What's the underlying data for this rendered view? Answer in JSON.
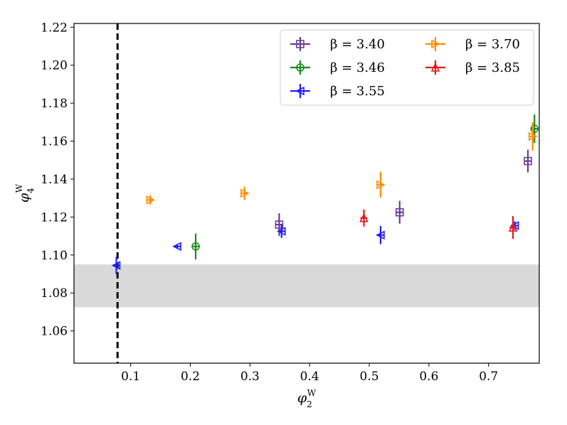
{
  "chart_data": {
    "type": "scatter",
    "title": "",
    "xlabel": {
      "base": "φ",
      "sub": "2",
      "sup": "W"
    },
    "ylabel": {
      "base": "φ",
      "sub": "4",
      "sup": "W"
    },
    "xlim": [
      0.005,
      0.785
    ],
    "ylim": [
      1.043,
      1.222
    ],
    "xticks": [
      0.1,
      0.2,
      0.3,
      0.4,
      0.5,
      0.6,
      0.7
    ],
    "xtick_labels": [
      "0.1",
      "0.2",
      "0.3",
      "0.4",
      "0.5",
      "0.6",
      "0.7"
    ],
    "yticks": [
      1.06,
      1.08,
      1.1,
      1.12,
      1.14,
      1.16,
      1.18,
      1.2,
      1.22
    ],
    "ytick_labels": [
      "1.06",
      "1.08",
      "1.10",
      "1.12",
      "1.14",
      "1.16",
      "1.18",
      "1.20",
      "1.22"
    ],
    "grid": false,
    "legend_position": "top-right",
    "vertical_line": {
      "x": 0.078,
      "style": "dashed",
      "color": "#000000"
    },
    "band": {
      "y_low": 1.0725,
      "y_high": 1.095,
      "color": "#d9d9d9"
    },
    "series": [
      {
        "name": "β = 3.40",
        "color": "#6a3d9a",
        "marker": "square",
        "points": [
          {
            "x": 0.349,
            "y": 1.116,
            "err": 0.006
          },
          {
            "x": 0.551,
            "y": 1.1225,
            "err": 0.006
          },
          {
            "x": 0.766,
            "y": 1.1495,
            "err": 0.006
          }
        ]
      },
      {
        "name": "β = 3.46",
        "color": "#1a8a1a",
        "marker": "circle",
        "points": [
          {
            "x": 0.209,
            "y": 1.1045,
            "err": 0.0068
          },
          {
            "x": 0.777,
            "y": 1.1665,
            "err": 0.0075
          }
        ]
      },
      {
        "name": "β = 3.55",
        "color": "#1f1fff",
        "marker": "triangle-left",
        "points": [
          {
            "x": 0.076,
            "y": 1.0945,
            "err": 0.0045
          },
          {
            "x": 0.178,
            "y": 1.1045,
            "err": 0.0012
          },
          {
            "x": 0.353,
            "y": 1.1125,
            "err": 0.0035
          },
          {
            "x": 0.519,
            "y": 1.1105,
            "err": 0.0048
          },
          {
            "x": 0.744,
            "y": 1.1155,
            "err": 0.0022
          }
        ]
      },
      {
        "name": "β = 3.70",
        "color": "#ff8c00",
        "marker": "triangle-right",
        "points": [
          {
            "x": 0.133,
            "y": 1.129,
            "err": 0.0025
          },
          {
            "x": 0.291,
            "y": 1.1325,
            "err": 0.0035
          },
          {
            "x": 0.519,
            "y": 1.137,
            "err": 0.0068
          },
          {
            "x": 0.774,
            "y": 1.1625,
            "err": 0.0075
          }
        ]
      },
      {
        "name": "β = 3.85",
        "color": "#e31a1c",
        "marker": "triangle-up",
        "points": [
          {
            "x": 0.491,
            "y": 1.1195,
            "err": 0.0045
          },
          {
            "x": 0.741,
            "y": 1.1145,
            "err": 0.006
          }
        ]
      }
    ],
    "legend_labels": [
      "β = 3.40",
      "β = 3.46",
      "β = 3.55",
      "β = 3.70",
      "β = 3.85"
    ]
  }
}
